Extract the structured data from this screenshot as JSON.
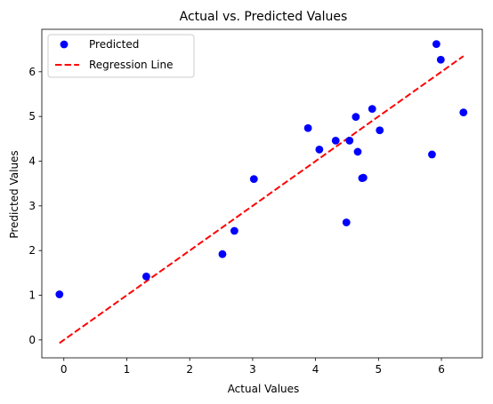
{
  "chart_data": {
    "type": "scatter",
    "title": "Actual vs. Predicted Values",
    "xlabel": "Actual Values",
    "ylabel": "Predicted Values",
    "xlim": [
      -0.35,
      6.65
    ],
    "ylim": [
      -0.4,
      6.95
    ],
    "xticks": [
      0,
      1,
      2,
      3,
      4,
      5,
      6
    ],
    "yticks": [
      0,
      1,
      2,
      3,
      4,
      5,
      6
    ],
    "grid": false,
    "legend_position": "upper-left",
    "series": [
      {
        "name": "Predicted",
        "type": "scatter",
        "color": "#0000ff",
        "points": [
          {
            "x": -0.07,
            "y": 1.02
          },
          {
            "x": 1.31,
            "y": 1.42
          },
          {
            "x": 2.52,
            "y": 1.92
          },
          {
            "x": 2.71,
            "y": 2.44
          },
          {
            "x": 3.02,
            "y": 3.6
          },
          {
            "x": 3.88,
            "y": 4.74
          },
          {
            "x": 4.06,
            "y": 4.26
          },
          {
            "x": 4.32,
            "y": 4.46
          },
          {
            "x": 4.49,
            "y": 2.63
          },
          {
            "x": 4.54,
            "y": 4.46
          },
          {
            "x": 4.64,
            "y": 4.99
          },
          {
            "x": 4.67,
            "y": 4.21
          },
          {
            "x": 4.74,
            "y": 3.62
          },
          {
            "x": 4.76,
            "y": 3.63
          },
          {
            "x": 4.9,
            "y": 5.17
          },
          {
            "x": 5.02,
            "y": 4.69
          },
          {
            "x": 5.85,
            "y": 4.15
          },
          {
            "x": 5.92,
            "y": 6.62
          },
          {
            "x": 5.99,
            "y": 6.27
          },
          {
            "x": 6.35,
            "y": 5.09
          }
        ]
      },
      {
        "name": "Regression Line",
        "type": "line",
        "color": "#ff0000",
        "dash": "dashed",
        "points": [
          {
            "x": -0.07,
            "y": -0.07
          },
          {
            "x": 6.35,
            "y": 6.35
          }
        ]
      }
    ]
  }
}
